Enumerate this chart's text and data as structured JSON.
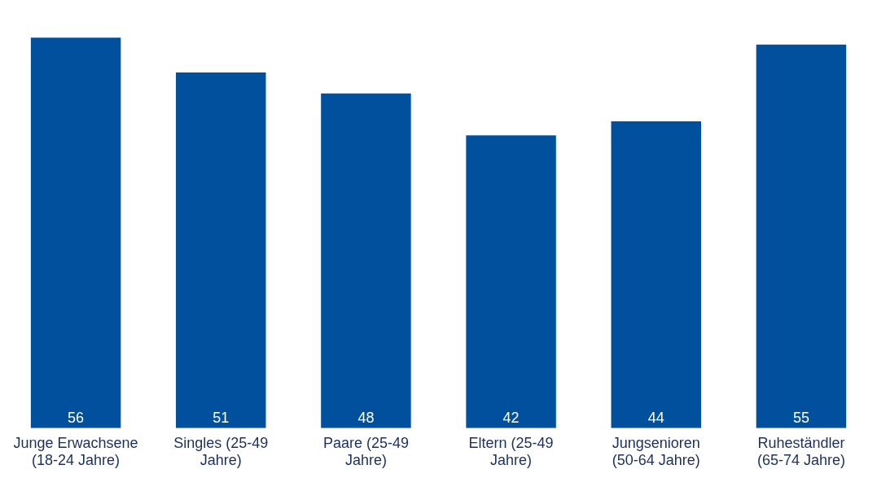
{
  "chart_data": {
    "type": "bar",
    "categories": [
      "Junge Erwachsene (18-24 Jahre)",
      "Singles (25-49 Jahre)",
      "Paare (25-49 Jahre)",
      "Eltern (25-49 Jahre)",
      "Jungsenioren (50-64 Jahre)",
      "Ruheständler (65-74 Jahre)"
    ],
    "values": [
      56,
      51,
      48,
      42,
      44,
      55
    ],
    "color": "#00509e",
    "tick_labels": "x",
    "data_labels": true,
    "grid": false,
    "legend": false
  }
}
